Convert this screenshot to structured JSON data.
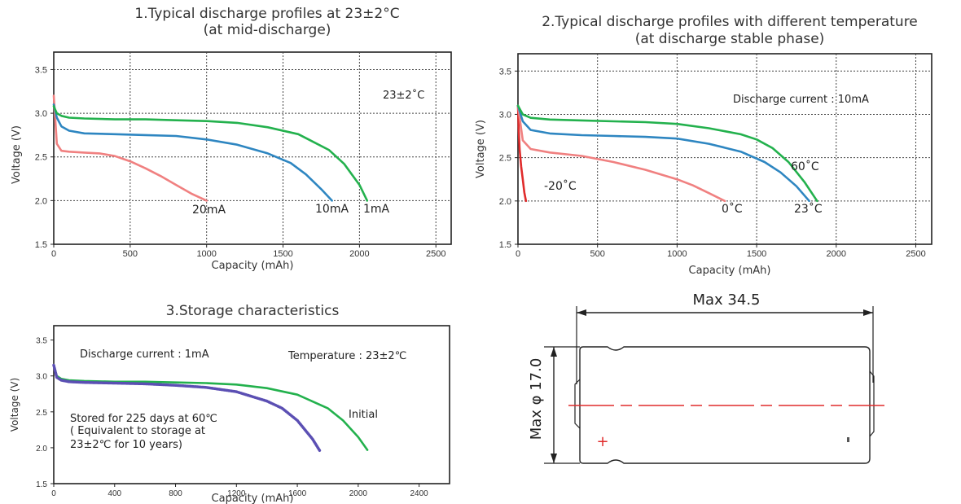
{
  "colors": {
    "pink": "#f08080",
    "red": "#e02b2b",
    "blue": "#2e86c1",
    "green": "#23b14d",
    "purple": "#5b4fb3"
  },
  "chart_data": [
    {
      "type": "line",
      "title_line1": "1.Typical discharge profiles at 23±2°C",
      "title_line2": "(at mid-discharge)",
      "xlabel": "Capacity (mAh)",
      "ylabel": "Voltage (V)",
      "xlim": [
        0,
        2600
      ],
      "ylim": [
        1.5,
        3.7
      ],
      "xticks": [
        "0",
        "500",
        "1000",
        "1500",
        "2000",
        "2500"
      ],
      "yticks": [
        "1.5",
        "2.0",
        "2.5",
        "3.0",
        "3.5"
      ],
      "grid": true,
      "annotations": [
        "23±2˚C"
      ],
      "series": [
        {
          "name": "20mA",
          "color": "pink",
          "x": [
            0,
            20,
            50,
            100,
            200,
            300,
            400,
            500,
            600,
            700,
            800,
            900,
            1000
          ],
          "y": [
            3.2,
            2.65,
            2.57,
            2.56,
            2.55,
            2.54,
            2.51,
            2.45,
            2.37,
            2.28,
            2.18,
            2.08,
            2.0
          ]
        },
        {
          "name": "10mA",
          "color": "blue",
          "x": [
            0,
            20,
            50,
            100,
            200,
            400,
            600,
            800,
            1000,
            1200,
            1400,
            1550,
            1650,
            1750,
            1820
          ],
          "y": [
            3.1,
            2.95,
            2.85,
            2.8,
            2.77,
            2.76,
            2.75,
            2.74,
            2.7,
            2.64,
            2.54,
            2.43,
            2.3,
            2.13,
            2.0
          ]
        },
        {
          "name": "1mA",
          "color": "green",
          "x": [
            0,
            20,
            50,
            100,
            200,
            400,
            600,
            800,
            1000,
            1200,
            1400,
            1600,
            1800,
            1900,
            2000,
            2050
          ],
          "y": [
            3.08,
            3.0,
            2.97,
            2.95,
            2.94,
            2.93,
            2.93,
            2.92,
            2.91,
            2.89,
            2.84,
            2.76,
            2.58,
            2.42,
            2.18,
            2.0
          ]
        }
      ]
    },
    {
      "type": "line",
      "title_line1": "2.Typical discharge profiles with different temperature",
      "title_line2": "(at discharge stable phase)",
      "xlabel": "Capacity (mAh)",
      "ylabel": "Voltage (V)",
      "xlim": [
        0,
        2600
      ],
      "ylim": [
        1.5,
        3.7
      ],
      "xticks": [
        "0",
        "500",
        "1000",
        "1500",
        "2000",
        "2500"
      ],
      "yticks": [
        "1.5",
        "2.0",
        "2.5",
        "3.0",
        "3.5"
      ],
      "grid": true,
      "annotations": [
        "Discharge current : 10mA"
      ],
      "series": [
        {
          "name": "-20˚C",
          "color": "red",
          "x": [
            0,
            5,
            10,
            20,
            30,
            40,
            50
          ],
          "y": [
            3.1,
            2.8,
            2.6,
            2.4,
            2.25,
            2.1,
            2.0
          ]
        },
        {
          "name": "0˚C",
          "color": "pink",
          "x": [
            0,
            30,
            80,
            200,
            400,
            600,
            800,
            1000,
            1100,
            1200,
            1300
          ],
          "y": [
            3.1,
            2.7,
            2.6,
            2.56,
            2.52,
            2.45,
            2.36,
            2.25,
            2.18,
            2.09,
            2.0
          ]
        },
        {
          "name": "23˚C",
          "color": "blue",
          "x": [
            0,
            30,
            80,
            200,
            400,
            600,
            800,
            1000,
            1200,
            1400,
            1550,
            1650,
            1750,
            1830
          ],
          "y": [
            3.1,
            2.92,
            2.82,
            2.78,
            2.76,
            2.75,
            2.74,
            2.72,
            2.66,
            2.57,
            2.45,
            2.33,
            2.17,
            2.0
          ]
        },
        {
          "name": "60˚C",
          "color": "green",
          "x": [
            0,
            30,
            80,
            200,
            400,
            600,
            800,
            1000,
            1200,
            1400,
            1500,
            1600,
            1700,
            1800,
            1880
          ],
          "y": [
            3.1,
            3.0,
            2.96,
            2.94,
            2.93,
            2.92,
            2.91,
            2.89,
            2.84,
            2.77,
            2.71,
            2.61,
            2.45,
            2.22,
            2.0
          ]
        }
      ]
    },
    {
      "type": "line",
      "title_line1": "3.Storage characteristics",
      "xlabel": "Capacity (mAh)",
      "ylabel": "Voltage (V)",
      "xlim": [
        0,
        2600
      ],
      "ylim": [
        1.5,
        3.7
      ],
      "xticks": [
        "0",
        "400",
        "800",
        "1200",
        "1600",
        "2000",
        "2400"
      ],
      "yticks": [
        "1.5",
        "2.0",
        "2.5",
        "3.0",
        "3.5"
      ],
      "grid": false,
      "annotations": [
        "Discharge current : 1mA",
        "Temperature : 23±2℃",
        "Stored for 225 days at 60℃",
        "( Equivalent to storage at",
        "23±2℃ for 10 years)"
      ],
      "series": [
        {
          "name": "Initial",
          "color": "green",
          "x": [
            0,
            20,
            50,
            100,
            200,
            400,
            600,
            800,
            1000,
            1200,
            1400,
            1600,
            1800,
            1900,
            2000,
            2060
          ],
          "y": [
            3.15,
            3.0,
            2.96,
            2.94,
            2.93,
            2.92,
            2.92,
            2.91,
            2.9,
            2.88,
            2.83,
            2.74,
            2.55,
            2.38,
            2.15,
            1.97
          ]
        },
        {
          "name": "Stored",
          "color": "purple",
          "x": [
            0,
            20,
            50,
            100,
            200,
            400,
            600,
            800,
            1000,
            1200,
            1400,
            1500,
            1600,
            1700,
            1750
          ],
          "y": [
            3.15,
            2.98,
            2.94,
            2.92,
            2.91,
            2.9,
            2.89,
            2.87,
            2.84,
            2.78,
            2.65,
            2.55,
            2.38,
            2.12,
            1.95
          ]
        }
      ]
    }
  ],
  "drawing": {
    "length_label": "Max 34.5",
    "diameter_label": "Max φ 17.0"
  }
}
